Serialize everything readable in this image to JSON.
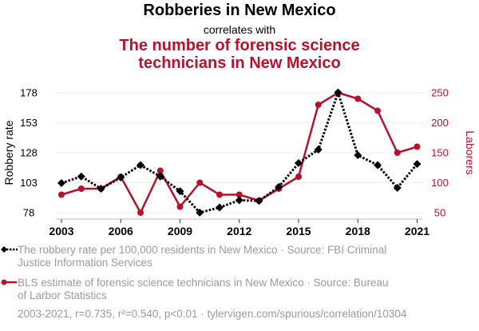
{
  "titles": {
    "main": "Robberies in New Mexico",
    "connector": "correlates with",
    "secondary_line1": "The number of forensic science",
    "secondary_line2": "technicians in New Mexico"
  },
  "legend": [
    {
      "text_line1": "The robbery rate per 100,000 residents in New Mexico · Source: FBI Criminal",
      "text_line2": "Justice Information Services"
    },
    {
      "text_line1": "BLS estimate of forensic science technicians in New Mexico · Source: Bureau",
      "text_line2": "of Larbor Statistics"
    }
  ],
  "footer": "2003-2021, r=0.735, r²=0.540, p<0.01 · tylervigen.com/spurious/correlation/10304",
  "colors": {
    "series1": "#000000",
    "series2": "#b5122b",
    "grid": "#eeeeee",
    "muted": "#9a9a9a"
  },
  "chart_data": {
    "type": "line",
    "x": [
      2003,
      2004,
      2005,
      2006,
      2007,
      2008,
      2009,
      2010,
      2011,
      2012,
      2013,
      2014,
      2015,
      2016,
      2017,
      2018,
      2019,
      2020,
      2021
    ],
    "xticks": [
      "2003",
      "2006",
      "2009",
      "2012",
      "2015",
      "2018",
      "2021"
    ],
    "xlim": [
      2003,
      2021
    ],
    "series": [
      {
        "name": "Robbery rate",
        "axis": "left",
        "marker": "diamond",
        "line": "dotted",
        "values": [
          102.7,
          108.2,
          98.0,
          107.3,
          117.7,
          108.2,
          95.9,
          78.1,
          82.3,
          88.4,
          87.8,
          99.5,
          119.3,
          130.6,
          178.2,
          125.9,
          117.7,
          98.7,
          118.6
        ]
      },
      {
        "name": "Laborers",
        "axis": "right",
        "marker": "circle",
        "line": "solid",
        "values": [
          80,
          90,
          90,
          110,
          50,
          120,
          60,
          100,
          80,
          80,
          70,
          90,
          110,
          230,
          250,
          240,
          220,
          150,
          160
        ]
      }
    ],
    "ylabel_left": "Robbery rate",
    "yticks_left": [
      "178",
      "153",
      "128",
      "103",
      "78"
    ],
    "ylim_left": [
      78,
      178
    ],
    "ylabel_right": "Laborers",
    "yticks_right": [
      "250",
      "200",
      "150",
      "100",
      "50"
    ],
    "ylim_right": [
      50,
      250
    ],
    "grid": "horizontal"
  }
}
